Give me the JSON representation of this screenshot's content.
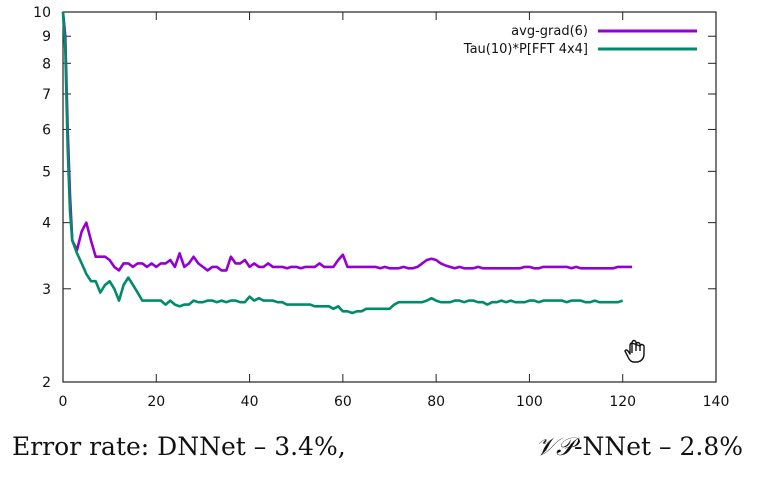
{
  "chart_data": {
    "type": "line",
    "title": "",
    "xlabel": "",
    "ylabel": "",
    "xlim": [
      0,
      140
    ],
    "ylim": [
      2,
      10
    ],
    "yscale": "log",
    "grid": false,
    "legend_position": "top-right",
    "x_ticks": [
      0,
      20,
      40,
      60,
      80,
      100,
      120,
      140
    ],
    "y_ticks": [
      2,
      3,
      4,
      5,
      6,
      7,
      8,
      9,
      10
    ],
    "series": [
      {
        "name": "avg-grad(6)",
        "color": "#9400d3",
        "points": [
          [
            0,
            10
          ],
          [
            0.5,
            9
          ],
          [
            1,
            6
          ],
          [
            1.5,
            4.5
          ],
          [
            2,
            3.7
          ],
          [
            3,
            3.55
          ],
          [
            4,
            3.85
          ],
          [
            5,
            4.0
          ],
          [
            6,
            3.7
          ],
          [
            7,
            3.45
          ],
          [
            8,
            3.45
          ],
          [
            9,
            3.45
          ],
          [
            10,
            3.4
          ],
          [
            11,
            3.3
          ],
          [
            12,
            3.25
          ],
          [
            13,
            3.35
          ],
          [
            14,
            3.35
          ],
          [
            15,
            3.3
          ],
          [
            16,
            3.35
          ],
          [
            17,
            3.35
          ],
          [
            18,
            3.3
          ],
          [
            19,
            3.35
          ],
          [
            20,
            3.3
          ],
          [
            21,
            3.35
          ],
          [
            22,
            3.35
          ],
          [
            23,
            3.4
          ],
          [
            24,
            3.3
          ],
          [
            25,
            3.5
          ],
          [
            26,
            3.3
          ],
          [
            27,
            3.35
          ],
          [
            28,
            3.45
          ],
          [
            29,
            3.35
          ],
          [
            30,
            3.3
          ],
          [
            31,
            3.25
          ],
          [
            32,
            3.3
          ],
          [
            33,
            3.3
          ],
          [
            34,
            3.25
          ],
          [
            35,
            3.25
          ],
          [
            36,
            3.45
          ],
          [
            37,
            3.35
          ],
          [
            38,
            3.35
          ],
          [
            39,
            3.4
          ],
          [
            40,
            3.3
          ],
          [
            41,
            3.35
          ],
          [
            42,
            3.3
          ],
          [
            43,
            3.3
          ],
          [
            44,
            3.35
          ],
          [
            45,
            3.3
          ],
          [
            46,
            3.3
          ],
          [
            47,
            3.3
          ],
          [
            48,
            3.28
          ],
          [
            49,
            3.3
          ],
          [
            50,
            3.3
          ],
          [
            51,
            3.28
          ],
          [
            52,
            3.3
          ],
          [
            53,
            3.3
          ],
          [
            54,
            3.3
          ],
          [
            55,
            3.35
          ],
          [
            56,
            3.3
          ],
          [
            57,
            3.3
          ],
          [
            58,
            3.3
          ],
          [
            59,
            3.4
          ],
          [
            60,
            3.48
          ],
          [
            61,
            3.3
          ],
          [
            62,
            3.3
          ],
          [
            63,
            3.3
          ],
          [
            64,
            3.3
          ],
          [
            65,
            3.3
          ],
          [
            66,
            3.3
          ],
          [
            67,
            3.3
          ],
          [
            68,
            3.28
          ],
          [
            69,
            3.3
          ],
          [
            70,
            3.28
          ],
          [
            71,
            3.28
          ],
          [
            72,
            3.28
          ],
          [
            73,
            3.3
          ],
          [
            74,
            3.28
          ],
          [
            75,
            3.28
          ],
          [
            76,
            3.3
          ],
          [
            77,
            3.35
          ],
          [
            78,
            3.4
          ],
          [
            79,
            3.42
          ],
          [
            80,
            3.4
          ],
          [
            81,
            3.35
          ],
          [
            82,
            3.32
          ],
          [
            83,
            3.3
          ],
          [
            84,
            3.28
          ],
          [
            85,
            3.3
          ],
          [
            86,
            3.28
          ],
          [
            87,
            3.28
          ],
          [
            88,
            3.28
          ],
          [
            89,
            3.3
          ],
          [
            90,
            3.28
          ],
          [
            91,
            3.28
          ],
          [
            92,
            3.28
          ],
          [
            93,
            3.28
          ],
          [
            94,
            3.28
          ],
          [
            95,
            3.28
          ],
          [
            96,
            3.28
          ],
          [
            97,
            3.28
          ],
          [
            98,
            3.28
          ],
          [
            99,
            3.3
          ],
          [
            100,
            3.3
          ],
          [
            101,
            3.28
          ],
          [
            102,
            3.28
          ],
          [
            103,
            3.3
          ],
          [
            104,
            3.3
          ],
          [
            105,
            3.3
          ],
          [
            106,
            3.3
          ],
          [
            107,
            3.3
          ],
          [
            108,
            3.3
          ],
          [
            109,
            3.28
          ],
          [
            110,
            3.3
          ],
          [
            111,
            3.28
          ],
          [
            112,
            3.28
          ],
          [
            113,
            3.28
          ],
          [
            114,
            3.28
          ],
          [
            115,
            3.28
          ],
          [
            116,
            3.28
          ],
          [
            117,
            3.28
          ],
          [
            118,
            3.28
          ],
          [
            119,
            3.3
          ],
          [
            120,
            3.3
          ],
          [
            121,
            3.3
          ],
          [
            122,
            3.3
          ]
        ]
      },
      {
        "name": "Tau(10)*P[FFT 4x4]",
        "color": "#008b6b",
        "points": [
          [
            0,
            10
          ],
          [
            0.5,
            8.5
          ],
          [
            1,
            5.5
          ],
          [
            1.5,
            4.2
          ],
          [
            2,
            3.7
          ],
          [
            3,
            3.5
          ],
          [
            4,
            3.35
          ],
          [
            5,
            3.2
          ],
          [
            6,
            3.1
          ],
          [
            7,
            3.1
          ],
          [
            8,
            2.95
          ],
          [
            9,
            3.05
          ],
          [
            10,
            3.1
          ],
          [
            11,
            3.0
          ],
          [
            12,
            2.85
          ],
          [
            13,
            3.05
          ],
          [
            14,
            3.15
          ],
          [
            15,
            3.05
          ],
          [
            16,
            2.95
          ],
          [
            17,
            2.85
          ],
          [
            18,
            2.85
          ],
          [
            19,
            2.85
          ],
          [
            20,
            2.85
          ],
          [
            21,
            2.85
          ],
          [
            22,
            2.8
          ],
          [
            23,
            2.85
          ],
          [
            24,
            2.8
          ],
          [
            25,
            2.78
          ],
          [
            26,
            2.8
          ],
          [
            27,
            2.8
          ],
          [
            28,
            2.85
          ],
          [
            29,
            2.83
          ],
          [
            30,
            2.83
          ],
          [
            31,
            2.85
          ],
          [
            32,
            2.85
          ],
          [
            33,
            2.83
          ],
          [
            34,
            2.85
          ],
          [
            35,
            2.83
          ],
          [
            36,
            2.85
          ],
          [
            37,
            2.85
          ],
          [
            38,
            2.83
          ],
          [
            39,
            2.83
          ],
          [
            40,
            2.9
          ],
          [
            41,
            2.85
          ],
          [
            42,
            2.88
          ],
          [
            43,
            2.85
          ],
          [
            44,
            2.85
          ],
          [
            45,
            2.85
          ],
          [
            46,
            2.83
          ],
          [
            47,
            2.83
          ],
          [
            48,
            2.8
          ],
          [
            49,
            2.8
          ],
          [
            50,
            2.8
          ],
          [
            51,
            2.8
          ],
          [
            52,
            2.8
          ],
          [
            53,
            2.8
          ],
          [
            54,
            2.78
          ],
          [
            55,
            2.78
          ],
          [
            56,
            2.78
          ],
          [
            57,
            2.78
          ],
          [
            58,
            2.75
          ],
          [
            59,
            2.78
          ],
          [
            60,
            2.72
          ],
          [
            61,
            2.72
          ],
          [
            62,
            2.7
          ],
          [
            63,
            2.72
          ],
          [
            64,
            2.72
          ],
          [
            65,
            2.75
          ],
          [
            66,
            2.75
          ],
          [
            67,
            2.75
          ],
          [
            68,
            2.75
          ],
          [
            69,
            2.75
          ],
          [
            70,
            2.75
          ],
          [
            71,
            2.8
          ],
          [
            72,
            2.83
          ],
          [
            73,
            2.83
          ],
          [
            74,
            2.83
          ],
          [
            75,
            2.83
          ],
          [
            76,
            2.83
          ],
          [
            77,
            2.83
          ],
          [
            78,
            2.85
          ],
          [
            79,
            2.88
          ],
          [
            80,
            2.85
          ],
          [
            81,
            2.83
          ],
          [
            82,
            2.83
          ],
          [
            83,
            2.83
          ],
          [
            84,
            2.85
          ],
          [
            85,
            2.85
          ],
          [
            86,
            2.83
          ],
          [
            87,
            2.85
          ],
          [
            88,
            2.85
          ],
          [
            89,
            2.83
          ],
          [
            90,
            2.83
          ],
          [
            91,
            2.8
          ],
          [
            92,
            2.83
          ],
          [
            93,
            2.83
          ],
          [
            94,
            2.85
          ],
          [
            95,
            2.83
          ],
          [
            96,
            2.85
          ],
          [
            97,
            2.83
          ],
          [
            98,
            2.83
          ],
          [
            99,
            2.83
          ],
          [
            100,
            2.85
          ],
          [
            101,
            2.85
          ],
          [
            102,
            2.83
          ],
          [
            103,
            2.85
          ],
          [
            104,
            2.85
          ],
          [
            105,
            2.85
          ],
          [
            106,
            2.85
          ],
          [
            107,
            2.85
          ],
          [
            108,
            2.83
          ],
          [
            109,
            2.85
          ],
          [
            110,
            2.85
          ],
          [
            111,
            2.85
          ],
          [
            112,
            2.83
          ],
          [
            113,
            2.83
          ],
          [
            114,
            2.85
          ],
          [
            115,
            2.83
          ],
          [
            116,
            2.83
          ],
          [
            117,
            2.83
          ],
          [
            118,
            2.83
          ],
          [
            119,
            2.83
          ],
          [
            120,
            2.85
          ]
        ]
      }
    ]
  },
  "caption": {
    "left_text": "Error rate: DNNet – 3.4%,",
    "right_prefix": "𝒱𝒫",
    "right_text": "-NNet – 2.8%"
  },
  "icons": {
    "cursor": "hand-cursor-icon"
  }
}
